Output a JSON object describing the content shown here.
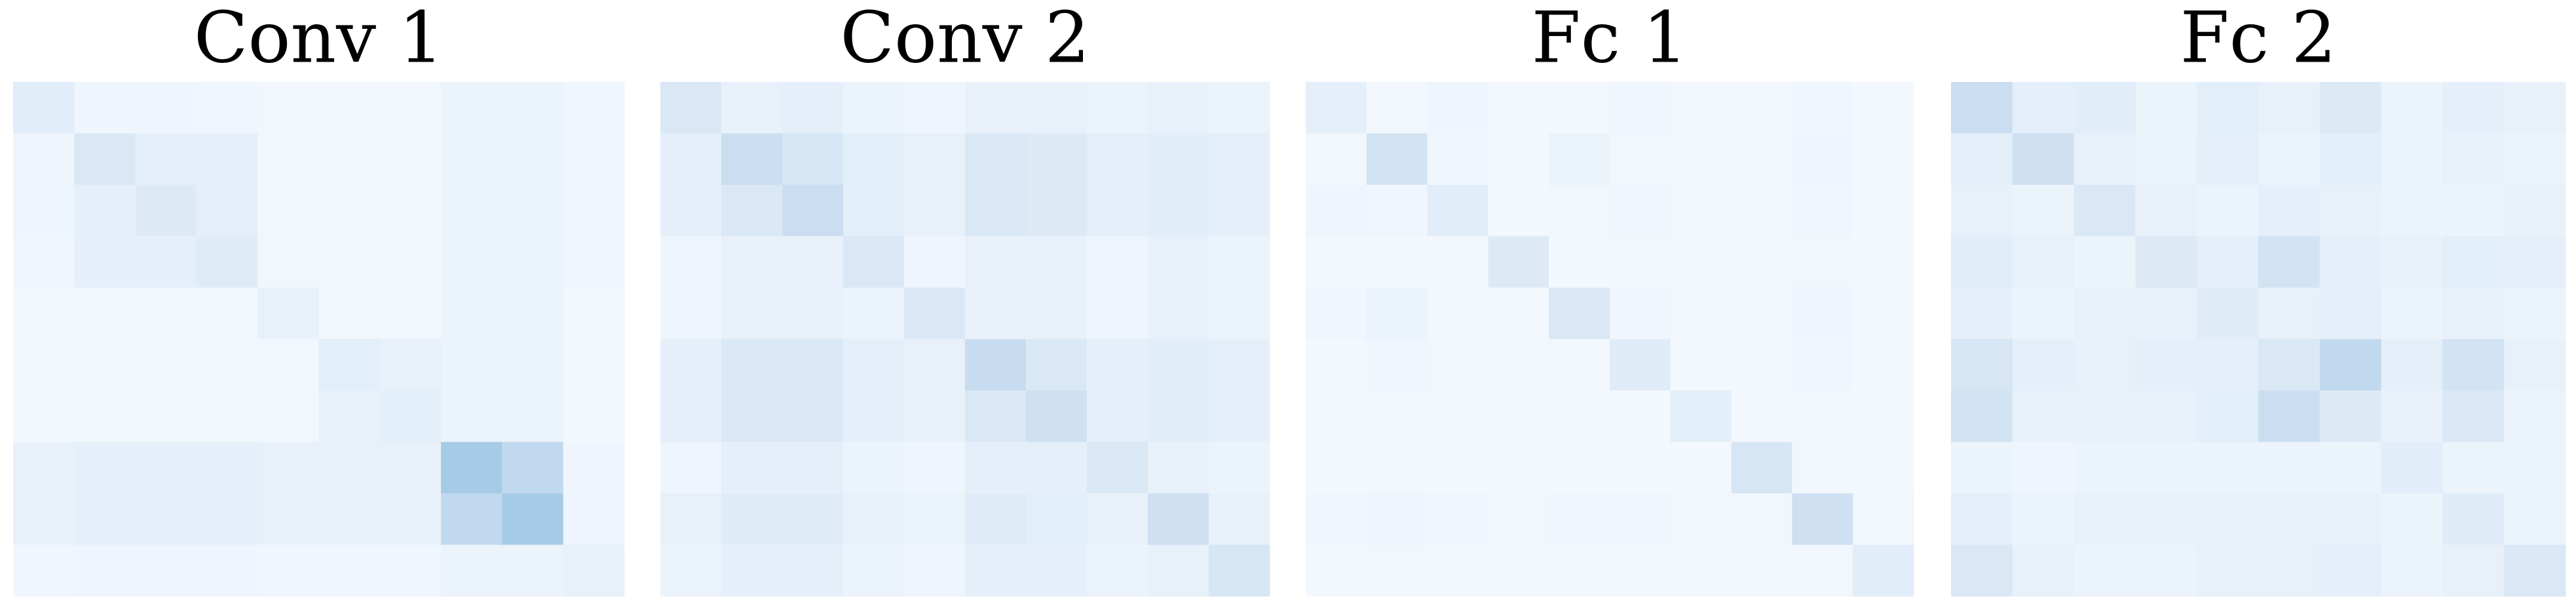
{
  "chart_data": [
    {
      "type": "heatmap",
      "title": "Conv 1",
      "colormap": [
        "#f7fbff",
        "#c6dbef",
        "#6baed6",
        "#08306b"
      ],
      "vlim": [
        0,
        1
      ],
      "values": [
        [
          0.15,
          0.06,
          0.06,
          0.05,
          0.04,
          0.04,
          0.04,
          0.08,
          0.08,
          0.05
        ],
        [
          0.06,
          0.2,
          0.12,
          0.12,
          0.04,
          0.04,
          0.04,
          0.08,
          0.08,
          0.05
        ],
        [
          0.06,
          0.12,
          0.18,
          0.12,
          0.04,
          0.04,
          0.04,
          0.08,
          0.08,
          0.05
        ],
        [
          0.05,
          0.12,
          0.12,
          0.16,
          0.04,
          0.04,
          0.04,
          0.08,
          0.08,
          0.05
        ],
        [
          0.04,
          0.04,
          0.04,
          0.04,
          0.1,
          0.04,
          0.04,
          0.08,
          0.08,
          0.04
        ],
        [
          0.04,
          0.04,
          0.04,
          0.04,
          0.04,
          0.14,
          0.1,
          0.08,
          0.08,
          0.04
        ],
        [
          0.04,
          0.04,
          0.04,
          0.04,
          0.04,
          0.1,
          0.14,
          0.08,
          0.08,
          0.04
        ],
        [
          0.1,
          0.12,
          0.12,
          0.12,
          0.1,
          0.1,
          0.1,
          0.45,
          0.35,
          0.06
        ],
        [
          0.1,
          0.12,
          0.12,
          0.12,
          0.1,
          0.1,
          0.1,
          0.35,
          0.45,
          0.06
        ],
        [
          0.05,
          0.06,
          0.06,
          0.06,
          0.05,
          0.05,
          0.05,
          0.08,
          0.08,
          0.1
        ]
      ]
    },
    {
      "type": "heatmap",
      "title": "Conv 2",
      "colormap": [
        "#f7fbff",
        "#c6dbef",
        "#6baed6",
        "#08306b"
      ],
      "vlim": [
        0,
        1
      ],
      "values": [
        [
          0.2,
          0.1,
          0.12,
          0.08,
          0.06,
          0.1,
          0.1,
          0.08,
          0.1,
          0.08
        ],
        [
          0.12,
          0.3,
          0.22,
          0.14,
          0.1,
          0.2,
          0.18,
          0.12,
          0.15,
          0.12
        ],
        [
          0.12,
          0.2,
          0.3,
          0.14,
          0.1,
          0.2,
          0.18,
          0.12,
          0.15,
          0.12
        ],
        [
          0.06,
          0.1,
          0.1,
          0.2,
          0.06,
          0.1,
          0.1,
          0.06,
          0.1,
          0.08
        ],
        [
          0.06,
          0.1,
          0.1,
          0.08,
          0.2,
          0.1,
          0.1,
          0.06,
          0.1,
          0.08
        ],
        [
          0.12,
          0.2,
          0.2,
          0.12,
          0.1,
          0.32,
          0.2,
          0.12,
          0.15,
          0.12
        ],
        [
          0.12,
          0.2,
          0.2,
          0.12,
          0.1,
          0.2,
          0.28,
          0.12,
          0.15,
          0.12
        ],
        [
          0.06,
          0.12,
          0.12,
          0.08,
          0.06,
          0.12,
          0.12,
          0.2,
          0.1,
          0.08
        ],
        [
          0.1,
          0.16,
          0.16,
          0.1,
          0.08,
          0.16,
          0.14,
          0.1,
          0.28,
          0.1
        ],
        [
          0.08,
          0.12,
          0.12,
          0.08,
          0.06,
          0.12,
          0.12,
          0.08,
          0.1,
          0.22
        ]
      ]
    },
    {
      "type": "heatmap",
      "title": "Fc 1",
      "colormap": [
        "#f7fbff",
        "#c6dbef",
        "#6baed6",
        "#08306b"
      ],
      "vlim": [
        0,
        1
      ],
      "values": [
        [
          0.12,
          0.04,
          0.06,
          0.03,
          0.03,
          0.05,
          0.03,
          0.03,
          0.05,
          0.03
        ],
        [
          0.04,
          0.25,
          0.05,
          0.03,
          0.08,
          0.04,
          0.03,
          0.04,
          0.06,
          0.03
        ],
        [
          0.06,
          0.05,
          0.15,
          0.03,
          0.04,
          0.05,
          0.03,
          0.03,
          0.05,
          0.03
        ],
        [
          0.03,
          0.03,
          0.03,
          0.18,
          0.03,
          0.04,
          0.03,
          0.03,
          0.04,
          0.03
        ],
        [
          0.05,
          0.08,
          0.04,
          0.03,
          0.2,
          0.05,
          0.04,
          0.03,
          0.06,
          0.03
        ],
        [
          0.03,
          0.05,
          0.04,
          0.03,
          0.04,
          0.16,
          0.03,
          0.03,
          0.05,
          0.03
        ],
        [
          0.04,
          0.03,
          0.03,
          0.03,
          0.03,
          0.03,
          0.14,
          0.03,
          0.04,
          0.03
        ],
        [
          0.03,
          0.04,
          0.03,
          0.03,
          0.03,
          0.03,
          0.03,
          0.22,
          0.04,
          0.03
        ],
        [
          0.05,
          0.06,
          0.05,
          0.04,
          0.05,
          0.05,
          0.04,
          0.04,
          0.28,
          0.04
        ],
        [
          0.03,
          0.04,
          0.03,
          0.03,
          0.03,
          0.03,
          0.03,
          0.03,
          0.04,
          0.15
        ]
      ]
    },
    {
      "type": "heatmap",
      "title": "Fc 2",
      "colormap": [
        "#f7fbff",
        "#c6dbef",
        "#6baed6",
        "#08306b"
      ],
      "vlim": [
        0,
        1
      ],
      "values": [
        [
          0.3,
          0.12,
          0.15,
          0.08,
          0.14,
          0.1,
          0.18,
          0.08,
          0.12,
          0.1
        ],
        [
          0.12,
          0.28,
          0.1,
          0.08,
          0.12,
          0.08,
          0.14,
          0.08,
          0.1,
          0.08
        ],
        [
          0.1,
          0.08,
          0.2,
          0.1,
          0.08,
          0.12,
          0.1,
          0.08,
          0.08,
          0.1
        ],
        [
          0.15,
          0.1,
          0.08,
          0.18,
          0.12,
          0.25,
          0.12,
          0.1,
          0.14,
          0.12
        ],
        [
          0.12,
          0.08,
          0.1,
          0.1,
          0.16,
          0.1,
          0.12,
          0.08,
          0.1,
          0.08
        ],
        [
          0.22,
          0.12,
          0.1,
          0.12,
          0.12,
          0.2,
          0.35,
          0.12,
          0.25,
          0.1
        ],
        [
          0.25,
          0.1,
          0.1,
          0.1,
          0.14,
          0.3,
          0.18,
          0.1,
          0.2,
          0.08
        ],
        [
          0.08,
          0.06,
          0.08,
          0.08,
          0.08,
          0.08,
          0.08,
          0.15,
          0.08,
          0.08
        ],
        [
          0.12,
          0.08,
          0.1,
          0.1,
          0.1,
          0.1,
          0.1,
          0.08,
          0.16,
          0.08
        ],
        [
          0.2,
          0.1,
          0.08,
          0.08,
          0.1,
          0.1,
          0.12,
          0.08,
          0.1,
          0.2
        ]
      ]
    }
  ]
}
